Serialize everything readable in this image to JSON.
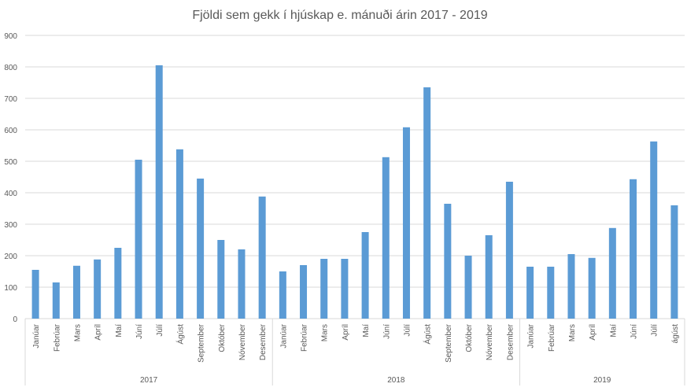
{
  "chart_data": {
    "type": "bar",
    "title": "Fjöldi sem gekk í hjúskap e. mánuði árin 2017 - 2019",
    "xlabel": "",
    "ylabel": "",
    "ylim": [
      0,
      900
    ],
    "yticks": [
      0,
      100,
      200,
      300,
      400,
      500,
      600,
      700,
      800,
      900
    ],
    "grid": true,
    "bar_color": "#5B9BD5",
    "groups": [
      {
        "year": "2017",
        "categories": [
          "Janúar",
          "Febrúar",
          "Mars",
          "Apríl",
          "Maí",
          "Júní",
          "Júlí",
          "Ágúst",
          "September",
          "Október",
          "Nóvember",
          "Desember"
        ],
        "values": [
          155,
          115,
          168,
          188,
          225,
          505,
          805,
          538,
          445,
          250,
          220,
          388
        ]
      },
      {
        "year": "2018",
        "categories": [
          "Janúar",
          "Febrúar",
          "Mars",
          "Apríl",
          "Maí",
          "Júní",
          "Júlí",
          "Ágúst",
          "September",
          "Október",
          "Nóvember",
          "Desember"
        ],
        "values": [
          150,
          170,
          190,
          190,
          275,
          513,
          608,
          735,
          365,
          200,
          265,
          435
        ]
      },
      {
        "year": "2019",
        "categories": [
          "Janúar",
          "Febrúar",
          "Mars",
          "Apríl",
          "Maí",
          "Júní",
          "Júlí",
          "ágúst"
        ],
        "values": [
          165,
          165,
          205,
          193,
          288,
          443,
          563,
          360
        ]
      }
    ]
  }
}
